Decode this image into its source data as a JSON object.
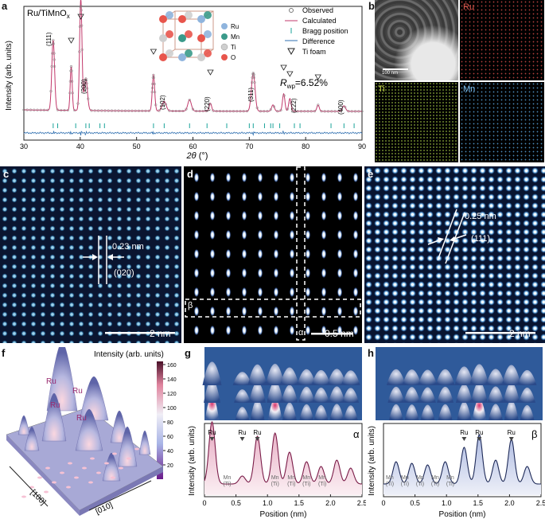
{
  "panel_letters": {
    "a": "a",
    "b": "b",
    "c": "c",
    "d": "d",
    "e": "e",
    "f": "f",
    "g": "g",
    "h": "h"
  },
  "panel_a": {
    "sample": "Ru/TiMnO",
    "sample_sub": "x",
    "ylabel": "Intensity (arb. units)",
    "xlabel_var": "2θ",
    "xlabel_unit": "(°)",
    "rwp_sym": "R",
    "rwp_sub": "wp",
    "rwp_value": "=6.52%",
    "legend": [
      "Observed",
      "Calculated",
      "Bragg position",
      "Difference",
      "Ti foam"
    ],
    "crystal_legend": [
      "Ru",
      "Mn",
      "Ti",
      "O"
    ],
    "hkl": [
      "(111)",
      "(200)",
      "(102)",
      "(220)",
      "(311)",
      "(222)",
      "(400)"
    ],
    "xticks": [
      "30",
      "40",
      "50",
      "60",
      "70",
      "80",
      "90"
    ]
  },
  "chart_data": [
    {
      "type": "line",
      "title": "",
      "xlabel": "2θ (°)",
      "ylabel": "Intensity (arb. units)",
      "xlim": [
        30,
        90
      ],
      "series": [
        {
          "name": "Observed",
          "peaks_2theta": [
            35.2,
            38.4,
            40.1,
            41.0,
            53.0,
            54.9,
            59.4,
            63.1,
            70.7,
            74.2,
            76.1,
            77.2,
            82.2,
            86.8
          ]
        },
        {
          "name": "Ti foam",
          "markers_2theta": [
            38.4,
            40.1,
            53.0,
            63.1,
            76.1,
            77.2,
            82.2
          ]
        }
      ],
      "annotations": [
        "(111)",
        "(200)",
        "(102)",
        "(220)",
        "(311)",
        "(222)",
        "(400)"
      ]
    },
    {
      "type": "line",
      "title": "",
      "xlabel": "Position (nm)",
      "ylabel": "Intensity (arb. units)",
      "xlim": [
        0,
        2.5
      ],
      "series": [
        {
          "name": "α",
          "peaks_nm": [
            0.12,
            0.6,
            0.84,
            1.12,
            1.35,
            1.62,
            1.85,
            2.1,
            2.32
          ]
        }
      ],
      "annotations": [
        "Ru",
        "Ru",
        "Ru",
        "Mn (Ti)"
      ]
    },
    {
      "type": "line",
      "title": "",
      "xlabel": "Position (nm)",
      "ylabel": "Intensity (arb. units)",
      "xlim": [
        0,
        2.5
      ],
      "series": [
        {
          "name": "β",
          "peaks_nm": [
            0.2,
            0.45,
            0.7,
            0.98,
            1.28,
            1.52,
            1.78,
            2.03,
            2.28
          ]
        }
      ],
      "annotations": [
        "Ru",
        "Ru",
        "Ru",
        "Mn (Ti)"
      ]
    }
  ],
  "panel_b": {
    "tem_scale": "100 nm",
    "maps": [
      "Ru",
      "Ti",
      "Mn"
    ]
  },
  "panel_c": {
    "d_spacing": "0.23 nm",
    "plane": "(020)",
    "scale": "2 nm"
  },
  "panel_d": {
    "alpha": "α",
    "beta": "β",
    "scale": "0.5 nm"
  },
  "panel_e": {
    "d_spacing": "0.25 nm",
    "plane": "(111)",
    "scale": "2 nm"
  },
  "panel_f": {
    "title": "Intensity (arb. units)",
    "cbar_ticks": [
      "160",
      "140",
      "120",
      "100",
      "80",
      "60",
      "40",
      "20"
    ],
    "ru_labels": [
      "Ru",
      "Ru",
      "Ru",
      "Ru"
    ],
    "axis1": "[100]",
    "axis2": "[010]"
  },
  "panel_g": {
    "ylabel": "Intensity (arb. units)",
    "xlabel": "Position (nm)",
    "tag": "α",
    "ru": [
      "Ru",
      "Ru",
      "Ru"
    ],
    "mn": [
      "Mn",
      "Mn",
      "Mn",
      "Mn",
      "Mn"
    ],
    "ti": [
      "(Ti)",
      "(Ti)",
      "(Ti)",
      "(Ti)",
      "(Ti)"
    ],
    "xticks": [
      "0",
      "0.5",
      "1.0",
      "1.5",
      "2.0",
      "2.5"
    ]
  },
  "panel_h": {
    "ylabel": "Intensity (arb. units)",
    "xlabel": "Position (nm)",
    "tag": "β",
    "ru": [
      "Ru",
      "Ru",
      "Ru"
    ],
    "mn": [
      "Mn",
      "Mn",
      "Mn",
      "Mn",
      "Mn"
    ],
    "ti": [
      "(Ti)",
      "(Ti)",
      "(Ti)",
      "(Ti)",
      "(Ti)"
    ],
    "xticks": [
      "0",
      "0.5",
      "1.0",
      "1.5",
      "2.0",
      "2.5"
    ]
  },
  "colors": {
    "observed": "#777777",
    "calculated": "#c2386b",
    "bragg": "#1aa39a",
    "difference": "#2f6fb0"
  }
}
